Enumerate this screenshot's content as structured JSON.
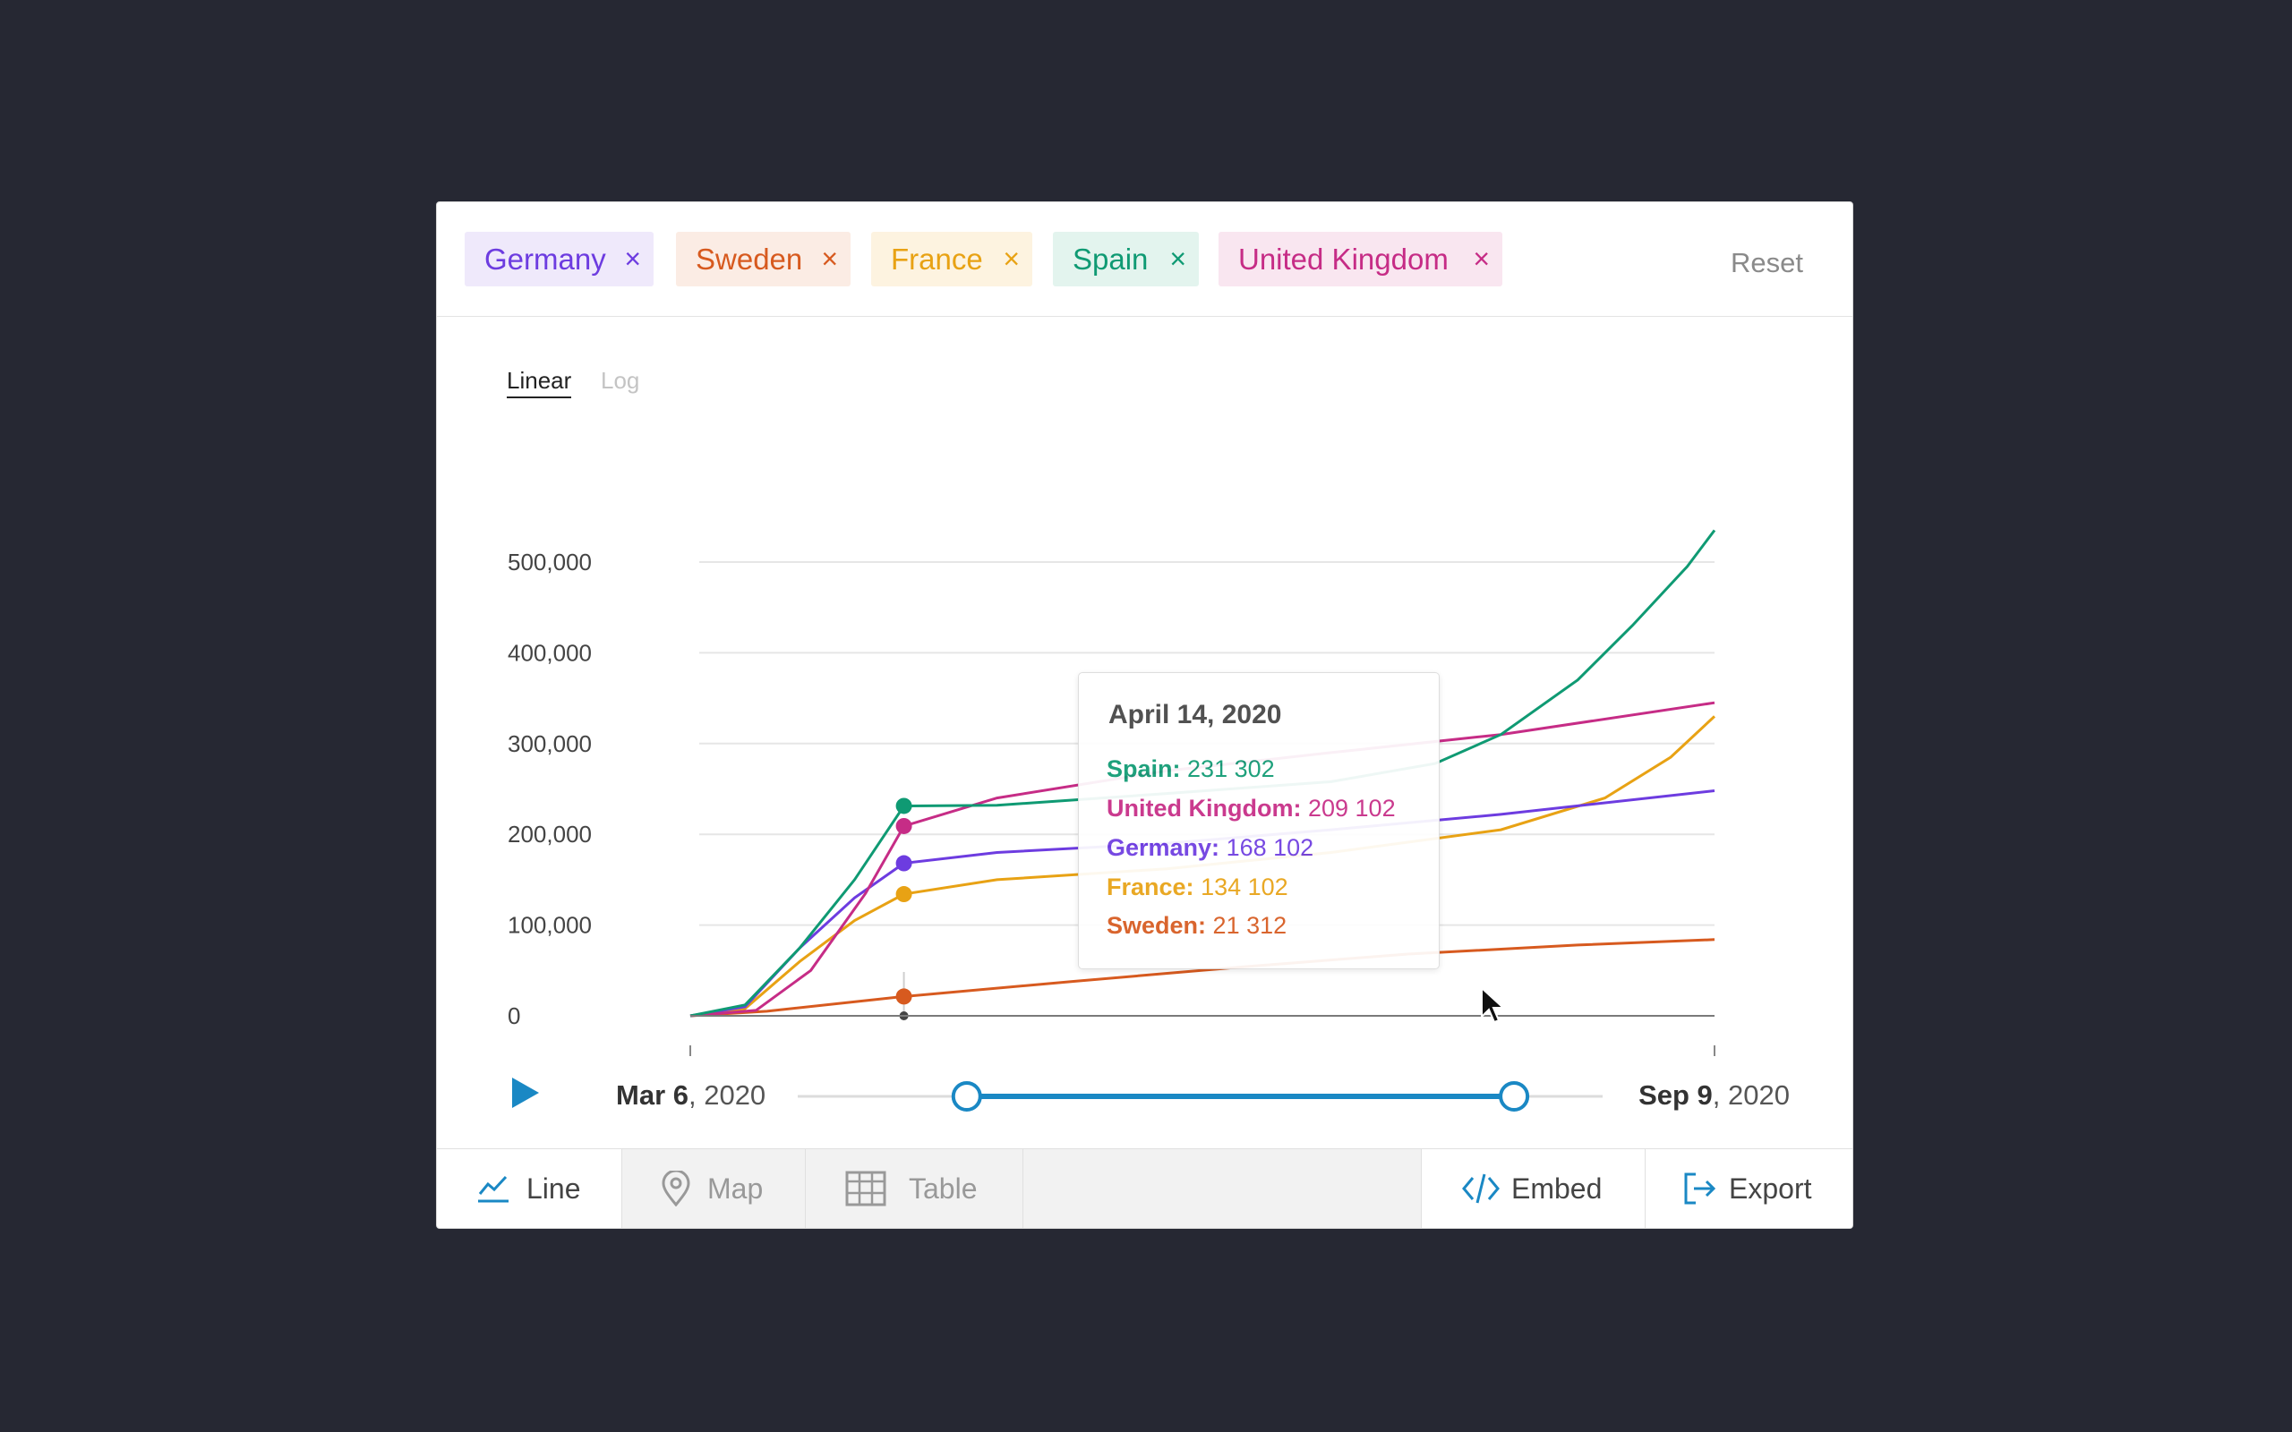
{
  "chips": [
    {
      "label": "Germany",
      "color": "#6d3ce0",
      "bg": "#efe9fb"
    },
    {
      "label": "Sweden",
      "color": "#d75a1f",
      "bg": "#fbece4"
    },
    {
      "label": "France",
      "color": "#e8a214",
      "bg": "#fdf3e0"
    },
    {
      "label": "Spain",
      "color": "#0f9a73",
      "bg": "#e3f4ee"
    },
    {
      "label": "United Kingdom",
      "color": "#c62c86",
      "bg": "#f9e6f0"
    }
  ],
  "chip_close_glyph": "×",
  "reset_label": "Reset",
  "scale": {
    "linear": "Linear",
    "log": "Log",
    "selected": "Linear"
  },
  "tooltip": {
    "title": "April 14, 2020",
    "rows": [
      {
        "country": "Spain:",
        "value": "231 302",
        "color": "#0f9a73"
      },
      {
        "country": "United Kingdom:",
        "value": "209 102",
        "color": "#c62c86"
      },
      {
        "country": "Germany:",
        "value": "168 102",
        "color": "#6d3ce0"
      },
      {
        "country": "France:",
        "value": "134 102",
        "color": "#e8a214"
      },
      {
        "country": "Sweden:",
        "value": "21 312",
        "color": "#d75a1f"
      }
    ]
  },
  "timeline": {
    "start_bold": "Mar 6",
    "start_rest": ", 2020",
    "end_bold": "Sep 9",
    "end_rest": ", 2020",
    "range_start_fraction": 0.21,
    "range_end_fraction": 0.89,
    "accent": "#1a88c4"
  },
  "tabs": {
    "line": "Line",
    "map": "Map",
    "table": "Table",
    "embed": "Embed",
    "export": "Export"
  },
  "chart_data": {
    "type": "line",
    "x_start": "2020-03-06",
    "x_end": "2020-09-09",
    "hover_date": "2020-04-14",
    "ylim": [
      0,
      520000
    ],
    "yticks": [
      0,
      100000,
      200000,
      300000,
      400000,
      500000
    ],
    "ytick_labels": [
      "0",
      "100,000",
      "200,000",
      "300,000",
      "400,000",
      "500,000"
    ],
    "grid": true,
    "series": [
      {
        "name": "Spain",
        "color": "#0f9a73",
        "points": [
          [
            "2020-03-06",
            0
          ],
          [
            "2020-03-16",
            12000
          ],
          [
            "2020-03-26",
            75000
          ],
          [
            "2020-04-05",
            150000
          ],
          [
            "2020-04-14",
            231302
          ],
          [
            "2020-05-01",
            232000
          ],
          [
            "2020-06-01",
            245000
          ],
          [
            "2020-07-01",
            258000
          ],
          [
            "2020-07-20",
            278000
          ],
          [
            "2020-08-01",
            310000
          ],
          [
            "2020-08-15",
            370000
          ],
          [
            "2020-08-25",
            430000
          ],
          [
            "2020-09-04",
            495000
          ],
          [
            "2020-09-09",
            535000
          ]
        ]
      },
      {
        "name": "United Kingdom",
        "color": "#c62c86",
        "points": [
          [
            "2020-03-06",
            0
          ],
          [
            "2020-03-18",
            6000
          ],
          [
            "2020-03-28",
            50000
          ],
          [
            "2020-04-07",
            135000
          ],
          [
            "2020-04-14",
            209102
          ],
          [
            "2020-05-01",
            240000
          ],
          [
            "2020-06-01",
            270000
          ],
          [
            "2020-07-01",
            290000
          ],
          [
            "2020-08-01",
            310000
          ],
          [
            "2020-09-09",
            345000
          ]
        ]
      },
      {
        "name": "Germany",
        "color": "#6d3ce0",
        "points": [
          [
            "2020-03-06",
            0
          ],
          [
            "2020-03-16",
            10000
          ],
          [
            "2020-03-26",
            75000
          ],
          [
            "2020-04-05",
            130000
          ],
          [
            "2020-04-14",
            168102
          ],
          [
            "2020-05-01",
            180000
          ],
          [
            "2020-06-01",
            190000
          ],
          [
            "2020-07-01",
            205000
          ],
          [
            "2020-08-01",
            222000
          ],
          [
            "2020-09-09",
            248000
          ]
        ]
      },
      {
        "name": "France",
        "color": "#e8a214",
        "points": [
          [
            "2020-03-06",
            0
          ],
          [
            "2020-03-16",
            8000
          ],
          [
            "2020-03-26",
            60000
          ],
          [
            "2020-04-05",
            105000
          ],
          [
            "2020-04-14",
            134102
          ],
          [
            "2020-05-01",
            150000
          ],
          [
            "2020-06-01",
            162000
          ],
          [
            "2020-07-01",
            180000
          ],
          [
            "2020-08-01",
            205000
          ],
          [
            "2020-08-20",
            240000
          ],
          [
            "2020-09-01",
            285000
          ],
          [
            "2020-09-09",
            330000
          ]
        ]
      },
      {
        "name": "Sweden",
        "color": "#d75a1f",
        "points": [
          [
            "2020-03-06",
            0
          ],
          [
            "2020-03-20",
            5000
          ],
          [
            "2020-04-14",
            21312
          ],
          [
            "2020-05-15",
            38000
          ],
          [
            "2020-06-15",
            54000
          ],
          [
            "2020-07-15",
            68000
          ],
          [
            "2020-08-15",
            78000
          ],
          [
            "2020-09-09",
            84000
          ]
        ]
      }
    ]
  }
}
